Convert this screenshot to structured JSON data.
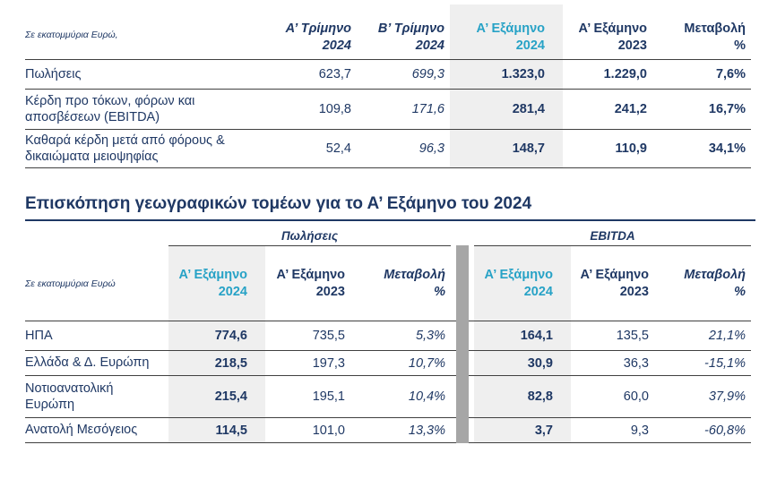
{
  "colors": {
    "navy_text": "#1F3864",
    "teal_accent": "#27A2C6",
    "column_highlight": "#EFEFEF",
    "separator_gray": "#A6A6A6",
    "rule_dark": "#404040"
  },
  "summary_table": {
    "unit_label": "Σε εκατομμύρια Ευρώ,",
    "columns": [
      {
        "line1": "Α’ Τρίμηνο",
        "line2": "2024"
      },
      {
        "line1": "Β’ Τρίμηνο",
        "line2": "2024"
      },
      {
        "line1": "Α’ Εξάμηνο",
        "line2": "2024"
      },
      {
        "line1": "Α’ Εξάμηνο",
        "line2": "2023"
      },
      {
        "line1": "Μεταβολή",
        "line2": "%"
      }
    ],
    "rows": [
      {
        "label": "Πωλήσεις",
        "values": [
          "623,7",
          "699,3",
          "1.323,0",
          "1.229,0",
          "7,6%"
        ]
      },
      {
        "label": "Κέρδη προ τόκων, φόρων και αποσβέσεων (EBITDA)",
        "values": [
          "109,8",
          "171,6",
          "281,4",
          "241,2",
          "16,7%"
        ]
      },
      {
        "label": "Καθαρά κέρδη μετά από φόρους & δικαιώματα μειοψηφίας",
        "values": [
          "52,4",
          "96,3",
          "148,7",
          "110,9",
          "34,1%"
        ]
      }
    ]
  },
  "section_title": "Επισκόπηση γεωγραφικών τομέων για το Α’ Εξάμηνο του 2024",
  "geo_table": {
    "unit_label": "Σε εκατομμύρια Ευρώ",
    "group_headers": [
      "Πωλήσεις",
      "EBITDA"
    ],
    "columns": [
      {
        "line1": "Α’ Εξάμηνο",
        "line2": "2024"
      },
      {
        "line1": "Α’ Εξάμηνο",
        "line2": "2023"
      },
      {
        "line1": "Μεταβολή",
        "line2": "%"
      }
    ],
    "rows": [
      {
        "label": "ΗΠΑ",
        "values": [
          "774,6",
          "735,5",
          "5,3%",
          "164,1",
          "135,5",
          "21,1%"
        ]
      },
      {
        "label": "Ελλάδα & Δ. Ευρώπη",
        "values": [
          "218,5",
          "197,3",
          "10,7%",
          "30,9",
          "36,3",
          "-15,1%"
        ]
      },
      {
        "label": "Νοτιοανατολική Ευρώπη",
        "values": [
          "215,4",
          "195,1",
          "10,4%",
          "82,8",
          "60,0",
          "37,9%"
        ]
      },
      {
        "label": "Ανατολή Μεσόγειος",
        "values": [
          "114,5",
          "101,0",
          "13,3%",
          "3,7",
          "9,3",
          "-60,8%"
        ]
      }
    ]
  }
}
